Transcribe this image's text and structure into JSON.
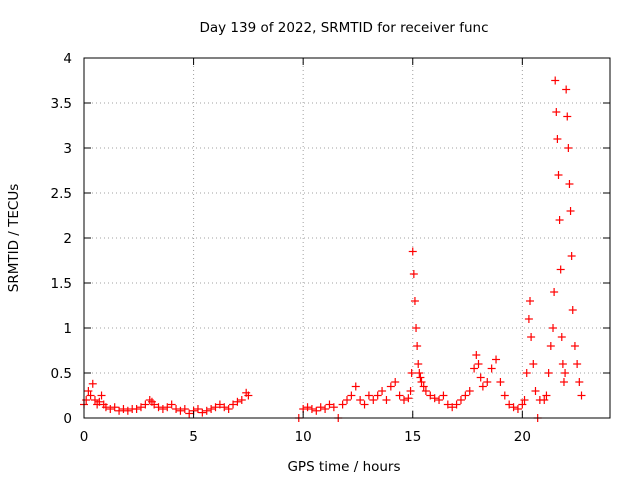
{
  "chart_data": {
    "type": "scatter",
    "title": "Day 139 of 2022, SRMTID for receiver func",
    "xlabel": "GPS time / hours",
    "ylabel": "SRMTID / TECUs",
    "xlim": [
      0,
      24
    ],
    "ylim": [
      0,
      4
    ],
    "xticks": [
      0,
      5,
      10,
      15,
      20
    ],
    "xtick_labels": [
      "0",
      "5",
      "10",
      "15",
      "20"
    ],
    "yticks": [
      0,
      0.5,
      1,
      1.5,
      2,
      2.5,
      3,
      3.5,
      4
    ],
    "ytick_labels": [
      "0",
      "0.5",
      "1",
      "1.5",
      "2",
      "2.5",
      "3",
      "3.5",
      "4"
    ],
    "grid": true,
    "marker": "+",
    "color": "#ff0000",
    "series": [
      {
        "name": "SRMTID",
        "x": [
          0.0,
          0.1,
          0.2,
          0.3,
          0.4,
          0.5,
          0.6,
          0.7,
          0.8,
          0.9,
          1.0,
          1.2,
          1.4,
          1.6,
          1.8,
          2.0,
          2.2,
          2.4,
          2.6,
          2.8,
          3.0,
          3.1,
          3.2,
          3.4,
          3.6,
          3.8,
          4.0,
          4.2,
          4.4,
          4.6,
          4.8,
          5.0,
          5.2,
          5.4,
          5.6,
          5.8,
          6.0,
          6.2,
          6.4,
          6.6,
          6.8,
          7.0,
          7.2,
          7.4,
          7.5,
          9.8,
          10.0,
          10.2,
          10.4,
          10.6,
          10.8,
          11.0,
          11.2,
          11.4,
          11.6,
          11.8,
          12.0,
          12.2,
          12.4,
          12.6,
          12.8,
          13.0,
          13.2,
          13.4,
          13.6,
          13.8,
          14.0,
          14.2,
          14.4,
          14.6,
          14.8,
          14.9,
          14.95,
          15.0,
          15.05,
          15.1,
          15.15,
          15.2,
          15.25,
          15.3,
          15.35,
          15.4,
          15.5,
          15.6,
          15.8,
          16.0,
          16.2,
          16.4,
          16.6,
          16.8,
          17.0,
          17.2,
          17.4,
          17.6,
          17.8,
          17.9,
          18.0,
          18.1,
          18.2,
          18.4,
          18.6,
          18.8,
          19.0,
          19.2,
          19.4,
          19.6,
          19.8,
          20.0,
          20.1,
          20.2,
          20.3,
          20.35,
          20.4,
          20.5,
          20.6,
          20.7,
          20.8,
          21.0,
          21.1,
          21.2,
          21.3,
          21.4,
          21.45,
          21.5,
          21.55,
          21.6,
          21.65,
          21.7,
          21.75,
          21.8,
          21.85,
          21.9,
          21.95,
          22.0,
          22.05,
          22.1,
          22.15,
          22.2,
          22.25,
          22.3,
          22.4,
          22.5,
          22.6,
          22.7
        ],
        "y": [
          0.15,
          0.2,
          0.3,
          0.25,
          0.38,
          0.2,
          0.15,
          0.18,
          0.25,
          0.15,
          0.12,
          0.1,
          0.12,
          0.08,
          0.1,
          0.08,
          0.1,
          0.1,
          0.12,
          0.15,
          0.2,
          0.18,
          0.15,
          0.12,
          0.1,
          0.12,
          0.15,
          0.1,
          0.08,
          0.1,
          0.05,
          0.08,
          0.1,
          0.06,
          0.08,
          0.1,
          0.12,
          0.15,
          0.12,
          0.1,
          0.15,
          0.18,
          0.2,
          0.28,
          0.25,
          0.0,
          0.1,
          0.12,
          0.1,
          0.08,
          0.12,
          0.1,
          0.15,
          0.12,
          0.0,
          0.15,
          0.2,
          0.25,
          0.35,
          0.2,
          0.15,
          0.25,
          0.2,
          0.25,
          0.3,
          0.2,
          0.35,
          0.4,
          0.25,
          0.2,
          0.22,
          0.3,
          0.5,
          1.85,
          1.6,
          1.3,
          1.0,
          0.8,
          0.6,
          0.5,
          0.45,
          0.4,
          0.35,
          0.3,
          0.25,
          0.22,
          0.2,
          0.25,
          0.15,
          0.12,
          0.15,
          0.2,
          0.25,
          0.3,
          0.55,
          0.7,
          0.6,
          0.45,
          0.35,
          0.4,
          0.55,
          0.65,
          0.4,
          0.25,
          0.15,
          0.12,
          0.1,
          0.15,
          0.2,
          0.5,
          1.1,
          1.3,
          0.9,
          0.6,
          0.3,
          0.0,
          0.2,
          0.2,
          0.25,
          0.5,
          0.8,
          1.0,
          1.4,
          3.75,
          3.4,
          3.1,
          2.7,
          2.2,
          1.65,
          0.9,
          0.6,
          0.4,
          0.5,
          3.65,
          3.35,
          3.0,
          2.6,
          2.3,
          1.8,
          1.2,
          0.8,
          0.6,
          0.4,
          0.25
        ]
      }
    ]
  }
}
